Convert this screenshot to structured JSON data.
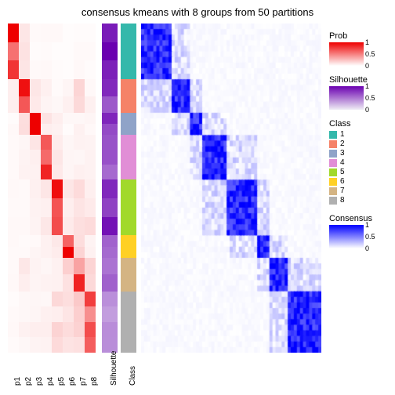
{
  "title": "consensus kmeans with 8 groups from 50 partitions",
  "background_color": "#ffffff",
  "title_fontsize": 13,
  "label_fontsize": 10,
  "prob_labels": [
    "p1",
    "p2",
    "p3",
    "p4",
    "p5",
    "p6",
    "p7",
    "p8"
  ],
  "annotation_labels": [
    "Silhouette",
    "Class"
  ],
  "prob_scale": {
    "label": "Prob",
    "low_color": "#ffffff",
    "high_color": "#ee0000",
    "range": [
      0,
      1
    ],
    "ticks": [
      0,
      0.5,
      1
    ]
  },
  "silhouette_scale": {
    "label": "Silhouette",
    "low_color": "#efedf5",
    "high_color": "#6a00b0",
    "range": [
      0,
      1
    ],
    "ticks": [
      0,
      0.5,
      1
    ]
  },
  "consensus_scale": {
    "label": "Consensus",
    "low_color": "#ffffff",
    "high_color": "#0000ff",
    "range": [
      0,
      1
    ],
    "ticks": [
      0,
      0.5,
      1
    ]
  },
  "class_legend": {
    "label": "Class",
    "items": [
      {
        "label": "1",
        "color": "#34b8ab"
      },
      {
        "label": "2",
        "color": "#f58268"
      },
      {
        "label": "3",
        "color": "#8fa3c8"
      },
      {
        "label": "4",
        "color": "#e18ed6"
      },
      {
        "label": "5",
        "color": "#a1d92b"
      },
      {
        "label": "6",
        "color": "#ffd024"
      },
      {
        "label": "7",
        "color": "#d4b483"
      },
      {
        "label": "8",
        "color": "#b0b0b0"
      }
    ]
  },
  "class_blocks": [
    {
      "class": 1,
      "size": 0.16,
      "color": "#34b8ab"
    },
    {
      "class": 2,
      "size": 0.1,
      "color": "#f58268"
    },
    {
      "class": 3,
      "size": 0.07,
      "color": "#8fa3c8"
    },
    {
      "class": 4,
      "size": 0.14,
      "color": "#e18ed6"
    },
    {
      "class": 5,
      "size": 0.17,
      "color": "#a1d92b"
    },
    {
      "class": 6,
      "size": 0.07,
      "color": "#ffd024"
    },
    {
      "class": 7,
      "size": 0.1,
      "color": "#d4b483"
    },
    {
      "class": 8,
      "size": 0.19,
      "color": "#b0b0b0"
    }
  ],
  "silhouette_values": [
    0.95,
    0.7,
    0.82,
    0.6,
    0.78,
    0.55,
    0.5,
    0.4
  ],
  "prob_matrix": [
    [
      0.95,
      0.08,
      0.02,
      0.03,
      0.02,
      0.02,
      0.02,
      0.02
    ],
    [
      0.05,
      0.85,
      0.08,
      0.05,
      0.03,
      0.05,
      0.12,
      0.05
    ],
    [
      0.03,
      0.1,
      0.9,
      0.08,
      0.05,
      0.03,
      0.05,
      0.05
    ],
    [
      0.02,
      0.05,
      0.08,
      0.65,
      0.1,
      0.03,
      0.04,
      0.05
    ],
    [
      0.02,
      0.03,
      0.05,
      0.1,
      0.7,
      0.08,
      0.1,
      0.1
    ],
    [
      0.02,
      0.03,
      0.03,
      0.05,
      0.1,
      0.8,
      0.15,
      0.08
    ],
    [
      0.02,
      0.12,
      0.05,
      0.04,
      0.08,
      0.15,
      0.6,
      0.18
    ],
    [
      0.02,
      0.05,
      0.05,
      0.05,
      0.12,
      0.1,
      0.18,
      0.55
    ]
  ],
  "consensus_matrix_style": {
    "diag_val": 0.9,
    "offdiag_high": 0.2,
    "offdiag_low": 0.03
  }
}
